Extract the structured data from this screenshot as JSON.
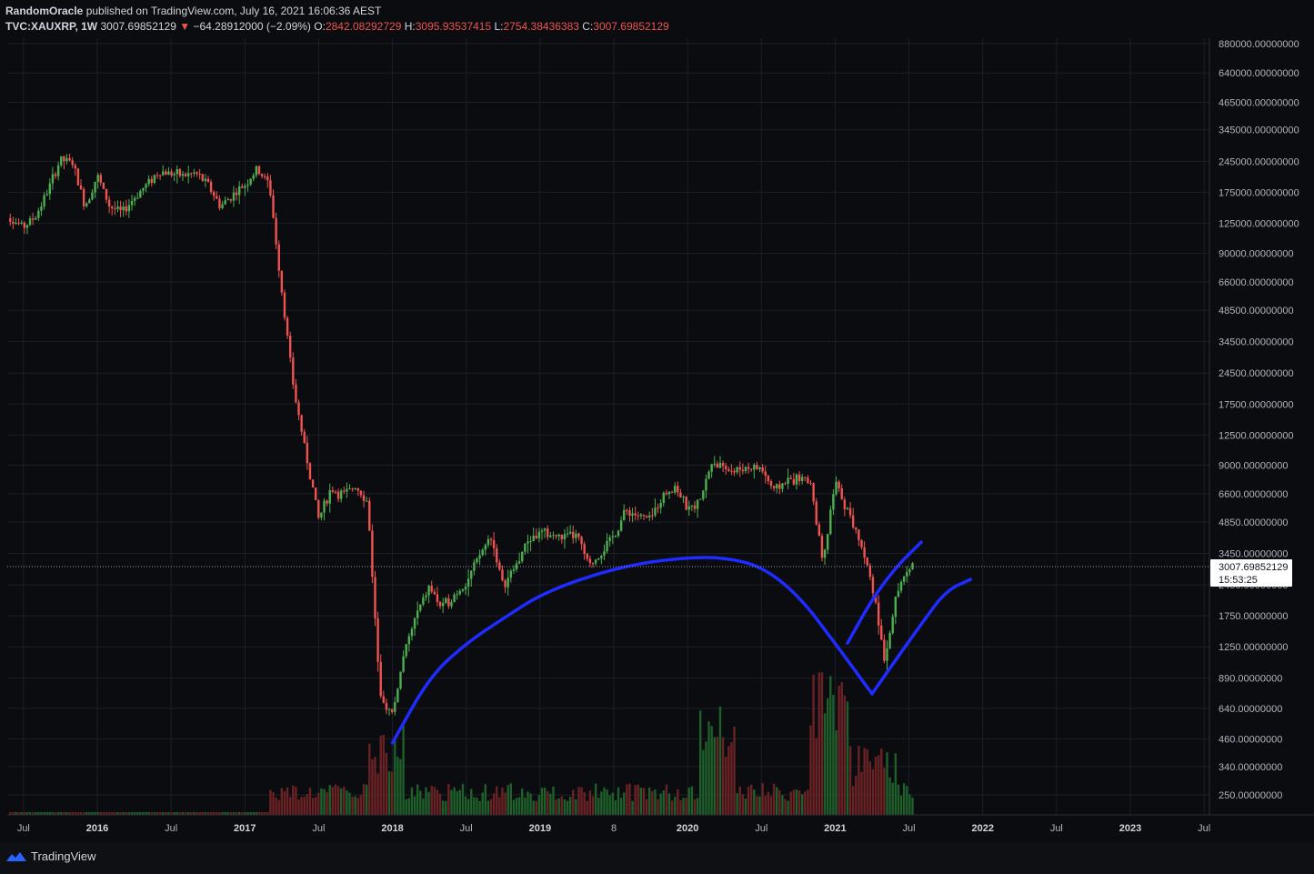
{
  "header": {
    "publisher": "RandomOracle",
    "published_text": "published on TradingView.com, July 16, 2021 16:06:36 AEST",
    "symbol": "TVC:XAUXRP, 1W",
    "last": "3007.69852129",
    "change_arrow": "▼",
    "change": "−64.28912000 (−2.09%)",
    "o_label": "O:",
    "o_value": "2842.08292729",
    "h_label": "H:",
    "h_value": "3095.93537415",
    "l_label": "L:",
    "l_value": "2754.38436383",
    "c_label": "C:",
    "c_value": "3007.69852129"
  },
  "price_marker": {
    "price": "3007.69852129",
    "countdown": "15:53:25"
  },
  "footer": {
    "brand": "TradingView"
  },
  "colors": {
    "up": "#26a69a",
    "up_candle": "#4caf50",
    "down": "#ef5350",
    "drawing": "#1f2bff",
    "grid": "#1c1f27",
    "background": "#0b0c10"
  },
  "chart_data": {
    "type": "candlestick",
    "y_scale": "log",
    "y_axis_ticks": [
      "880000.00000000",
      "640000.00000000",
      "465000.00000000",
      "345000.00000000",
      "245000.00000000",
      "175000.00000000",
      "125000.00000000",
      "90000.00000000",
      "66000.00000000",
      "48500.00000000",
      "34500.00000000",
      "24500.00000000",
      "17500.00000000",
      "12500.00000000",
      "9000.00000000",
      "6600.00000000",
      "4850.00000000",
      "3450.00000000",
      "2450.00000000",
      "1750.00000000",
      "1250.00000000",
      "890.00000000",
      "640.00000000",
      "460.00000000",
      "340.00000000",
      "250.00000000"
    ],
    "y_tick_values": [
      880000,
      640000,
      465000,
      345000,
      245000,
      175000,
      125000,
      90000,
      66000,
      48500,
      34500,
      24500,
      17500,
      12500,
      9000,
      6600,
      4850,
      3450,
      2450,
      1750,
      1250,
      890,
      640,
      460,
      340,
      250
    ],
    "x_axis_labels": [
      {
        "label": "Jul",
        "year": false,
        "date": "2015-07"
      },
      {
        "label": "2016",
        "year": true,
        "date": "2016-01"
      },
      {
        "label": "Jul",
        "year": false,
        "date": "2016-07"
      },
      {
        "label": "2017",
        "year": true,
        "date": "2017-01"
      },
      {
        "label": "Jul",
        "year": false,
        "date": "2017-07"
      },
      {
        "label": "2018",
        "year": true,
        "date": "2018-01"
      },
      {
        "label": "Jul",
        "year": false,
        "date": "2018-07"
      },
      {
        "label": "2019",
        "year": true,
        "date": "2019-01"
      },
      {
        "label": "8",
        "year": false,
        "date": "2019-07"
      },
      {
        "label": "2020",
        "year": true,
        "date": "2020-01"
      },
      {
        "label": "Jul",
        "year": false,
        "date": "2020-07"
      },
      {
        "label": "2021",
        "year": true,
        "date": "2021-01"
      },
      {
        "label": "Jul",
        "year": false,
        "date": "2021-07"
      },
      {
        "label": "2022",
        "year": true,
        "date": "2022-01"
      },
      {
        "label": "Jul",
        "year": false,
        "date": "2022-07"
      },
      {
        "label": "2023",
        "year": true,
        "date": "2023-01"
      },
      {
        "label": "Jul",
        "year": false,
        "date": "2023-07"
      }
    ],
    "price_path": [
      [
        "2015-05",
        160000
      ],
      [
        "2015-06",
        130000
      ],
      [
        "2015-07",
        120000
      ],
      [
        "2015-08",
        135000
      ],
      [
        "2015-09",
        180000
      ],
      [
        "2015-10",
        250000
      ],
      [
        "2015-11",
        240000
      ],
      [
        "2015-12",
        150000
      ],
      [
        "2016-01",
        210000
      ],
      [
        "2016-02",
        150000
      ],
      [
        "2016-03",
        140000
      ],
      [
        "2016-04",
        165000
      ],
      [
        "2016-05",
        190000
      ],
      [
        "2016-06",
        220000
      ],
      [
        "2016-07",
        215000
      ],
      [
        "2016-08",
        210000
      ],
      [
        "2016-09",
        215000
      ],
      [
        "2016-10",
        190000
      ],
      [
        "2016-11",
        150000
      ],
      [
        "2016-12",
        170000
      ],
      [
        "2017-01",
        190000
      ],
      [
        "2017-02",
        225000
      ],
      [
        "2017-03",
        190000
      ],
      [
        "2017-04",
        60000
      ],
      [
        "2017-05",
        20000
      ],
      [
        "2017-06",
        10000
      ],
      [
        "2017-07",
        5000
      ],
      [
        "2017-08",
        7000
      ],
      [
        "2017-09",
        6500
      ],
      [
        "2017-10",
        7200
      ],
      [
        "2017-11",
        6000
      ],
      [
        "2017-12",
        700
      ],
      [
        "2018-01",
        600
      ],
      [
        "2018-02",
        1200
      ],
      [
        "2018-03",
        1800
      ],
      [
        "2018-04",
        2400
      ],
      [
        "2018-05",
        1900
      ],
      [
        "2018-06",
        2200
      ],
      [
        "2018-07",
        2500
      ],
      [
        "2018-08",
        3300
      ],
      [
        "2018-09",
        4200
      ],
      [
        "2018-10",
        2400
      ],
      [
        "2018-11",
        3000
      ],
      [
        "2018-12",
        4000
      ],
      [
        "2019-01",
        4300
      ],
      [
        "2019-02",
        4200
      ],
      [
        "2019-03",
        4100
      ],
      [
        "2019-04",
        4200
      ],
      [
        "2019-05",
        3000
      ],
      [
        "2019-06",
        3500
      ],
      [
        "2019-07",
        4200
      ],
      [
        "2019-08",
        5500
      ],
      [
        "2019-09",
        5200
      ],
      [
        "2019-10",
        5000
      ],
      [
        "2019-11",
        6500
      ],
      [
        "2019-12",
        7200
      ],
      [
        "2020-01",
        5500
      ],
      [
        "2020-02",
        6000
      ],
      [
        "2020-03",
        9500
      ],
      [
        "2020-04",
        8500
      ],
      [
        "2020-05",
        8600
      ],
      [
        "2020-06",
        8800
      ],
      [
        "2020-07",
        8700
      ],
      [
        "2020-08",
        6800
      ],
      [
        "2020-09",
        7600
      ],
      [
        "2020-10",
        7800
      ],
      [
        "2020-11",
        7500
      ],
      [
        "2020-12",
        3000
      ],
      [
        "2021-01",
        7500
      ],
      [
        "2021-02",
        5500
      ],
      [
        "2021-03",
        4000
      ],
      [
        "2021-04",
        2500
      ],
      [
        "2021-05",
        1100
      ],
      [
        "2021-06",
        2200
      ],
      [
        "2021-07",
        3000
      ]
    ],
    "drawings": [
      {
        "name": "rounding-bottom-arc",
        "points": [
          [
            "2018-01",
            440
          ],
          [
            "2018-04",
            900
          ],
          [
            "2018-07",
            1300
          ],
          [
            "2018-10",
            1700
          ],
          [
            "2019-01",
            2200
          ],
          [
            "2019-05",
            2700
          ],
          [
            "2019-09",
            3100
          ],
          [
            "2020-01",
            3300
          ],
          [
            "2020-04",
            3300
          ],
          [
            "2020-07",
            3000
          ],
          [
            "2020-10",
            2200
          ],
          [
            "2021-01",
            1300
          ],
          [
            "2021-04",
            750
          ]
        ]
      },
      {
        "name": "recovery-curve-lower",
        "points": [
          [
            "2021-04",
            750
          ],
          [
            "2021-06",
            1100
          ],
          [
            "2021-08",
            1600
          ],
          [
            "2021-10",
            2300
          ],
          [
            "2021-12",
            2600
          ]
        ]
      },
      {
        "name": "recovery-curve-upper",
        "points": [
          [
            "2021-02",
            1300
          ],
          [
            "2021-04",
            2100
          ],
          [
            "2021-06",
            3000
          ],
          [
            "2021-08",
            3900
          ]
        ]
      }
    ]
  }
}
